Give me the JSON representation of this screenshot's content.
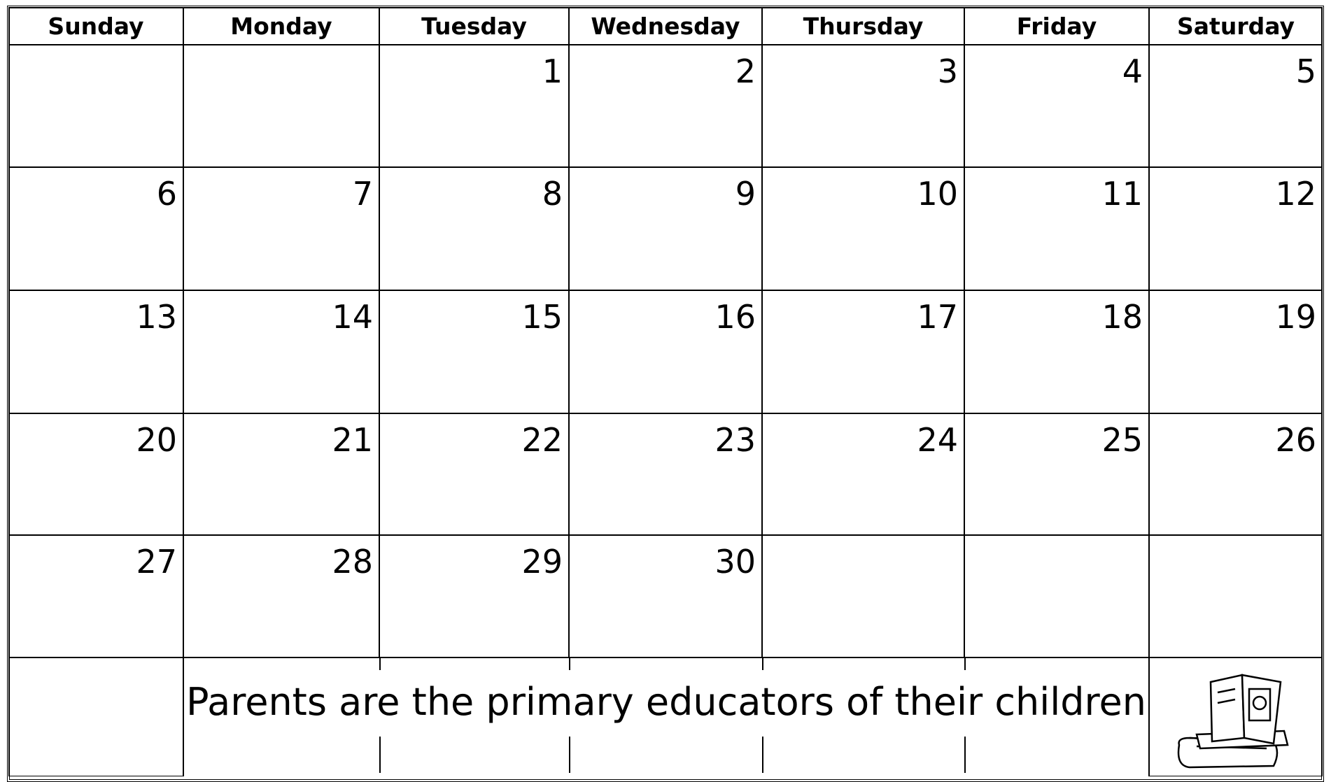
{
  "calendar": {
    "days": [
      "Sunday",
      "Monday",
      "Tuesday",
      "Wednesday",
      "Thursday",
      "Friday",
      "Saturday"
    ],
    "weeks": [
      [
        null,
        null,
        1,
        2,
        3,
        4,
        5
      ],
      [
        6,
        7,
        8,
        9,
        10,
        11,
        12
      ],
      [
        13,
        14,
        15,
        16,
        17,
        18,
        19
      ],
      [
        20,
        21,
        22,
        23,
        24,
        25,
        26
      ],
      [
        27,
        28,
        29,
        30,
        null,
        null,
        null
      ]
    ],
    "footer": "Parents are the primary educators of their children"
  }
}
